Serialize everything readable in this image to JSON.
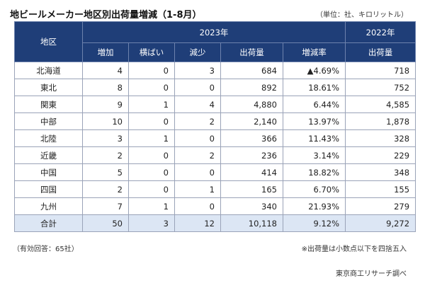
{
  "title": "地ビールメーカー地区別出荷量増減（1-8月）",
  "unit": "（単位：社、キロリットル）",
  "header": {
    "region": "地区",
    "year_2023": "2023年",
    "year_2022": "2022年",
    "cols": [
      "増加",
      "横ばい",
      "減少",
      "出荷量",
      "増減率",
      "出荷量"
    ]
  },
  "rows": [
    {
      "region": "北海道",
      "inc": "4",
      "flat": "0",
      "dec": "3",
      "ship": "684",
      "rate": "▲4.69%",
      "ship22": "718"
    },
    {
      "region": "東北",
      "inc": "8",
      "flat": "0",
      "dec": "0",
      "ship": "892",
      "rate": "18.61%",
      "ship22": "752"
    },
    {
      "region": "関東",
      "inc": "9",
      "flat": "1",
      "dec": "4",
      "ship": "4,880",
      "rate": "6.44%",
      "ship22": "4,585"
    },
    {
      "region": "中部",
      "inc": "10",
      "flat": "0",
      "dec": "2",
      "ship": "2,140",
      "rate": "13.97%",
      "ship22": "1,878"
    },
    {
      "region": "北陸",
      "inc": "3",
      "flat": "1",
      "dec": "0",
      "ship": "366",
      "rate": "11.43%",
      "ship22": "328"
    },
    {
      "region": "近畿",
      "inc": "2",
      "flat": "0",
      "dec": "2",
      "ship": "236",
      "rate": "3.14%",
      "ship22": "229"
    },
    {
      "region": "中国",
      "inc": "5",
      "flat": "0",
      "dec": "0",
      "ship": "414",
      "rate": "18.82%",
      "ship22": "348"
    },
    {
      "region": "四国",
      "inc": "2",
      "flat": "0",
      "dec": "1",
      "ship": "165",
      "rate": "6.70%",
      "ship22": "155"
    },
    {
      "region": "九州",
      "inc": "7",
      "flat": "1",
      "dec": "0",
      "ship": "340",
      "rate": "21.93%",
      "ship22": "279"
    }
  ],
  "total": {
    "region": "合計",
    "inc": "50",
    "flat": "3",
    "dec": "12",
    "ship": "10,118",
    "rate": "9.12%",
    "ship22": "9,272"
  },
  "note_left": "（有効回答：65社）",
  "note_right": "※出荷量は小数点以下を四捨五入",
  "source": "東京商工リサーチ調べ",
  "colors": {
    "header_bg": "#1f3e78",
    "total_bg": "#dce6f4"
  }
}
